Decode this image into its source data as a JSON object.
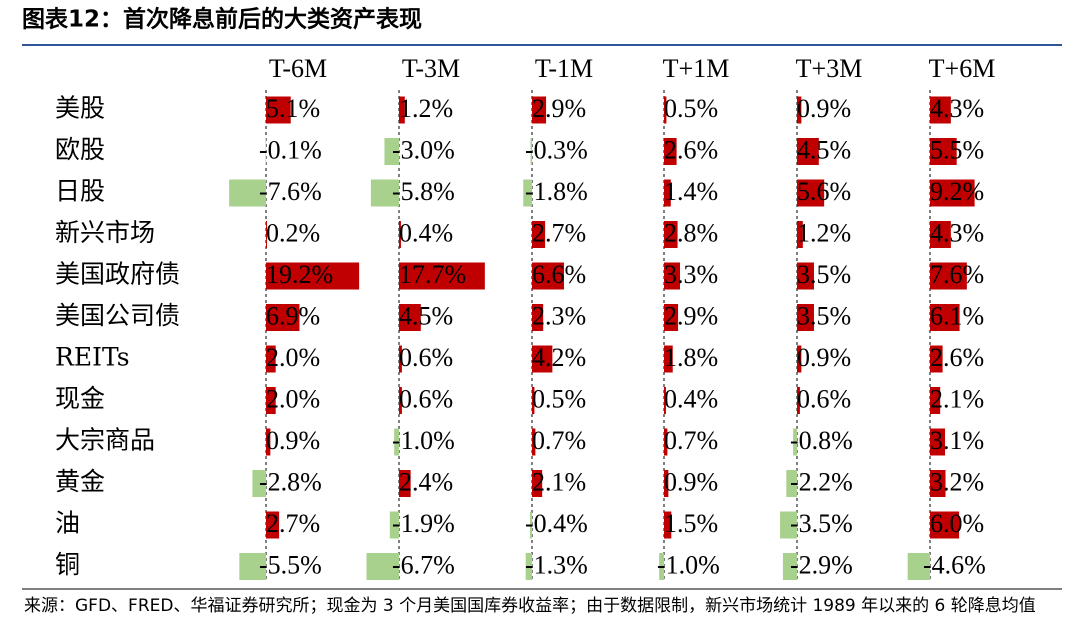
{
  "chart_data": {
    "type": "bar_table",
    "title": "图表12：首次降息前后的大类资产表现",
    "categories": [
      "美股",
      "欧股",
      "日股",
      "新兴市场",
      "美国政府债",
      "美国公司债",
      "REITs",
      "现金",
      "大宗商品",
      "黄金",
      "油",
      "铜"
    ],
    "positive_color": "#c00000",
    "negative_color": "#a9d18e",
    "series": [
      {
        "name": "T-6M",
        "values": [
          5.1,
          -0.1,
          -7.6,
          0.2,
          19.2,
          6.9,
          2.0,
          2.0,
          0.9,
          -2.8,
          2.7,
          -5.5
        ],
        "value_labels": [
          "5.1%",
          "-0.1%",
          "-7.6%",
          "0.2%",
          "19.2%",
          "6.9%",
          "2.0%",
          "2.0%",
          "0.9%",
          "-2.8%",
          "2.7%",
          "-5.5%"
        ]
      },
      {
        "name": "T-3M",
        "values": [
          1.2,
          -3.0,
          -5.8,
          0.4,
          17.7,
          4.5,
          0.6,
          0.6,
          -1.0,
          2.4,
          -1.9,
          -6.7
        ],
        "value_labels": [
          "1.2%",
          "-3.0%",
          "-5.8%",
          "0.4%",
          "17.7%",
          "4.5%",
          "0.6%",
          "0.6%",
          "-1.0%",
          "2.4%",
          "-1.9%",
          "-6.7%"
        ]
      },
      {
        "name": "T-1M",
        "values": [
          2.9,
          -0.3,
          -1.8,
          2.7,
          6.6,
          2.3,
          4.2,
          0.5,
          0.7,
          2.1,
          -0.4,
          -1.3
        ],
        "value_labels": [
          "2.9%",
          "-0.3%",
          "-1.8%",
          "2.7%",
          "6.6%",
          "2.3%",
          "4.2%",
          "0.5%",
          "0.7%",
          "2.1%",
          "-0.4%",
          "-1.3%"
        ]
      },
      {
        "name": "T+1M",
        "values": [
          0.5,
          2.6,
          1.4,
          2.8,
          3.3,
          2.9,
          1.8,
          0.4,
          0.7,
          0.9,
          1.5,
          -1.0
        ],
        "value_labels": [
          "0.5%",
          "2.6%",
          "1.4%",
          "2.8%",
          "3.3%",
          "2.9%",
          "1.8%",
          "0.4%",
          "0.7%",
          "0.9%",
          "1.5%",
          "-1.0%"
        ]
      },
      {
        "name": "T+3M",
        "values": [
          0.9,
          4.5,
          5.6,
          1.2,
          3.5,
          3.5,
          0.9,
          0.6,
          -0.8,
          -2.2,
          -3.5,
          -2.9
        ],
        "value_labels": [
          "0.9%",
          "4.5%",
          "5.6%",
          "1.2%",
          "3.5%",
          "3.5%",
          "0.9%",
          "0.6%",
          "-0.8%",
          "-2.2%",
          "-3.5%",
          "-2.9%"
        ]
      },
      {
        "name": "T+6M",
        "values": [
          4.3,
          5.5,
          9.2,
          4.3,
          7.6,
          6.1,
          2.6,
          2.1,
          3.1,
          3.2,
          6.0,
          -4.6
        ],
        "value_labels": [
          "4.3%",
          "5.5%",
          "9.2%",
          "4.3%",
          "7.6%",
          "6.1%",
          "2.6%",
          "2.1%",
          "3.1%",
          "3.2%",
          "6.0%",
          "-4.6%"
        ]
      }
    ],
    "source": "来源：GFD、FRED、华福证券研究所；现金为 3 个月美国国库券收益率；由于数据限制，新兴市场统计 1989 年以来的 6 轮降息均值"
  }
}
